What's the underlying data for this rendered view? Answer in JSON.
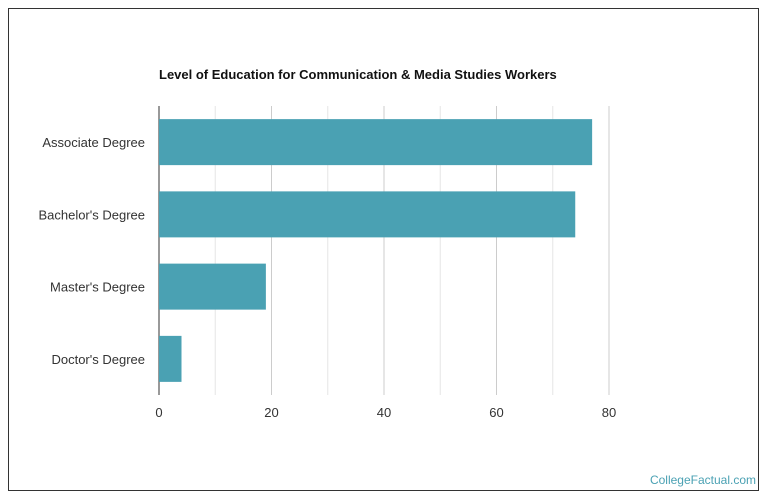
{
  "chart_data": {
    "type": "bar",
    "orientation": "horizontal",
    "title": "Level of Education for Communication & Media Studies Workers",
    "xlabel": "",
    "ylabel": "",
    "categories": [
      "Associate Degree",
      "Bachelor's Degree",
      "Master's Degree",
      "Doctor's Degree"
    ],
    "values": [
      77,
      74,
      19,
      4
    ],
    "xlim": [
      0,
      80
    ],
    "xticks": [
      0,
      20,
      40,
      60,
      80
    ],
    "grid": true,
    "bar_color": "#4aa1b3"
  },
  "watermark": "CollegeFactual.com"
}
